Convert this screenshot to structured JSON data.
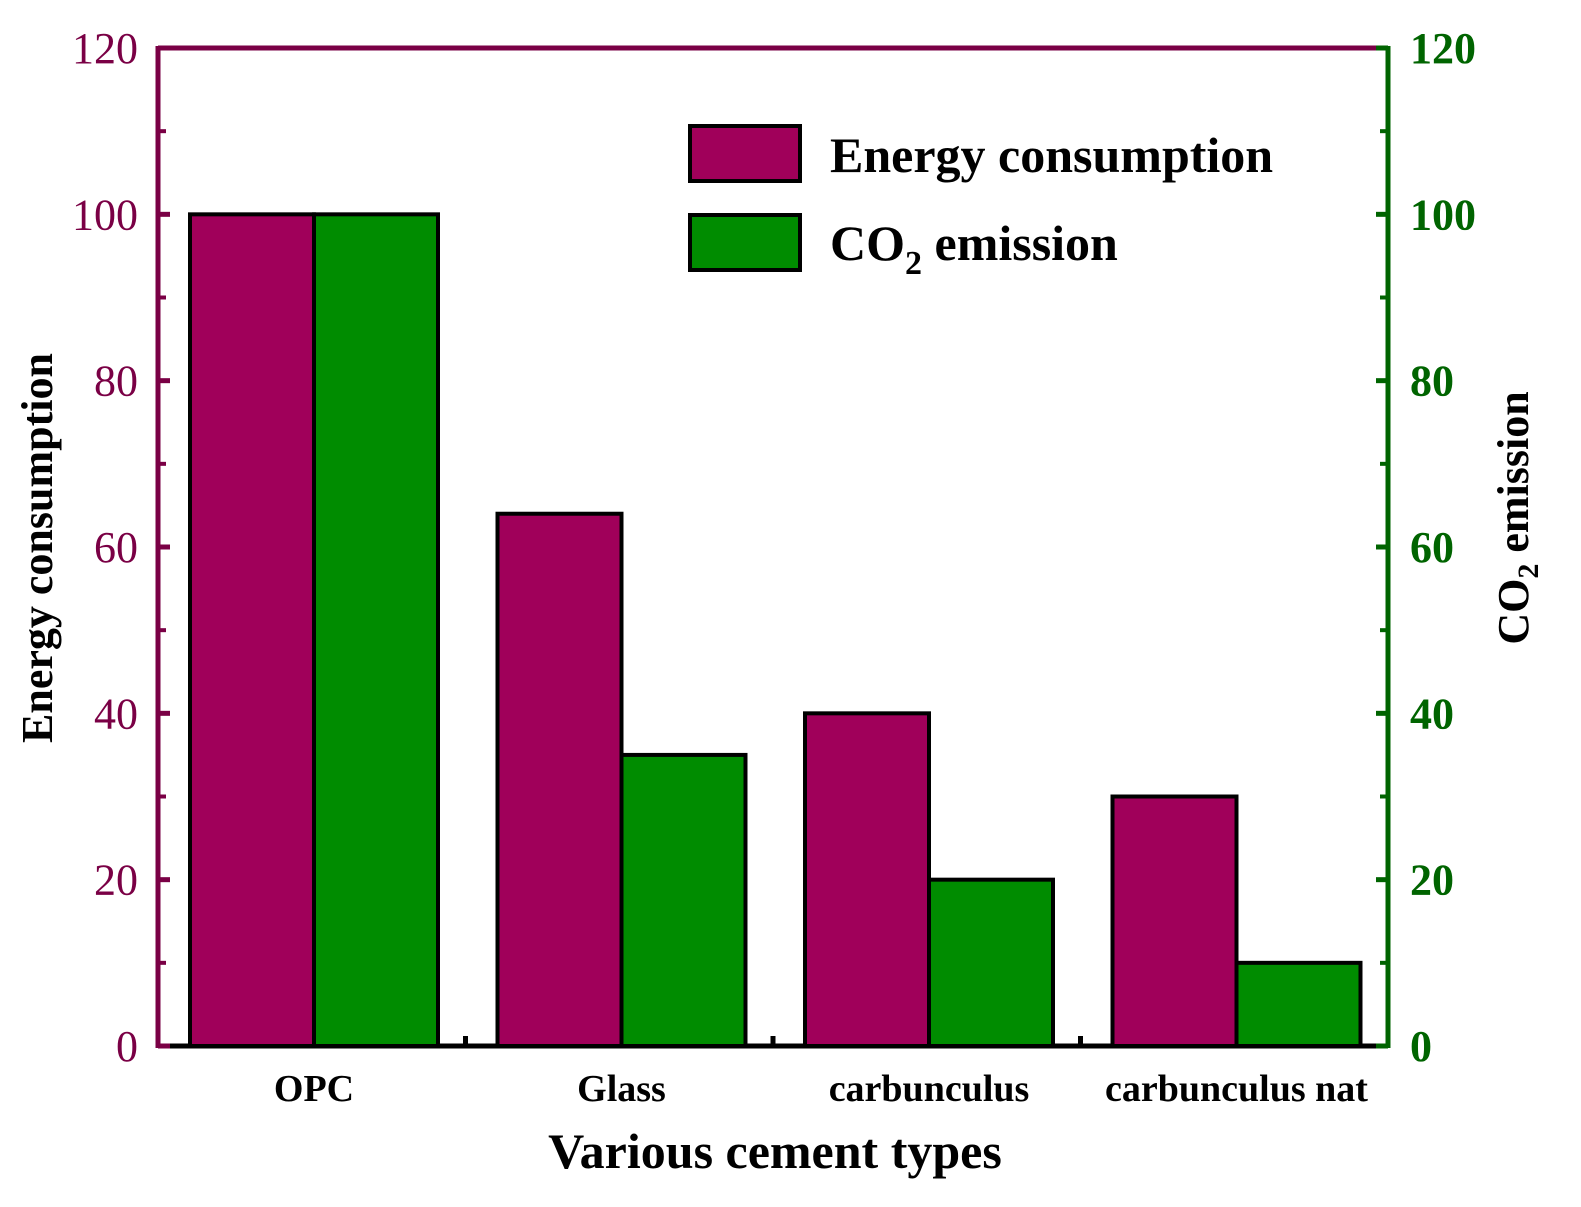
{
  "chart_data": {
    "type": "bar",
    "title": "",
    "categories": [
      "OPC",
      "Glass",
      "carbunculus",
      "carbunculus nat"
    ],
    "series": [
      {
        "name": "Energy consumption",
        "axis": "left",
        "color": "#A0005A",
        "values": [
          100,
          64,
          40,
          30
        ]
      },
      {
        "name": "CO2 emission",
        "axis": "right",
        "color": "#008C00",
        "values": [
          100,
          35,
          20,
          10
        ]
      }
    ],
    "xlabel": "Various cement types",
    "ylabel_left": "Energy consumption",
    "ylabel_right": "CO2 emission",
    "ylim_left": [
      0,
      120
    ],
    "ylim_right": [
      0,
      120
    ],
    "y_ticks": [
      0,
      20,
      40,
      60,
      80,
      100,
      120
    ],
    "left_axis_color": "#7A0045",
    "right_axis_color": "#006400",
    "legend_position": "top-right",
    "legend": [
      {
        "label": "Energy consumption",
        "color": "#A0005A"
      },
      {
        "label_main": "CO",
        "label_sub": "2",
        "label_rest": " emission",
        "color": "#008C00"
      }
    ]
  }
}
